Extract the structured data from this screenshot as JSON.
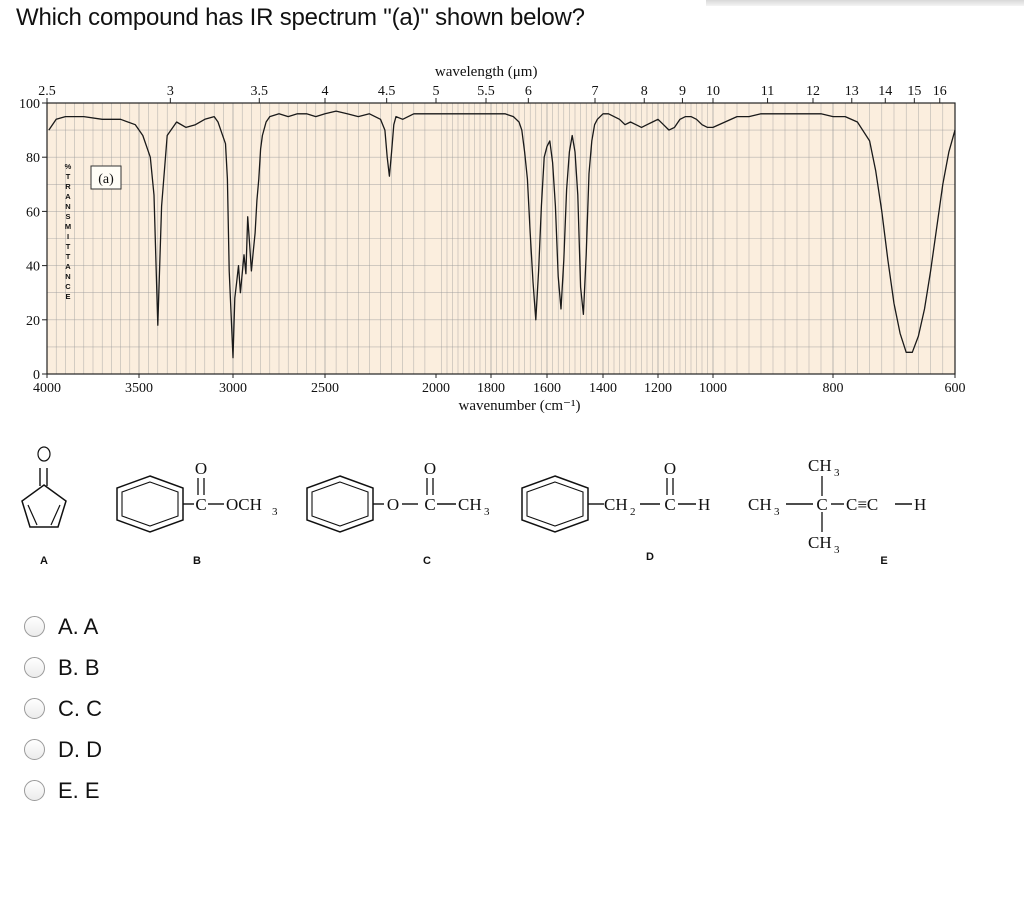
{
  "question": "Which compound has IR spectrum \"(a)\" shown below?",
  "chart_data": {
    "type": "line",
    "title": "",
    "panel_label": "(a)",
    "xlabel": "wavenumber (cm⁻¹)",
    "x2label": "wavelength (μm)",
    "ylabel_letters": [
      "%",
      "T",
      "R",
      "A",
      "N",
      "S",
      "M",
      "I",
      "T",
      "T",
      "A",
      "N",
      "C",
      "E"
    ],
    "xlim": [
      4000,
      600
    ],
    "ylim": [
      0,
      100
    ],
    "x_ticks": [
      {
        "value": 4000,
        "label": "4000"
      },
      {
        "value": 3500,
        "label": "3500"
      },
      {
        "value": 3000,
        "label": "3000"
      },
      {
        "value": 2500,
        "label": "2500"
      },
      {
        "value": 2000,
        "label": "2000"
      },
      {
        "value": 1800,
        "label": "1800"
      },
      {
        "value": 1600,
        "label": "1600"
      },
      {
        "value": 1400,
        "label": "1400"
      },
      {
        "value": 1200,
        "label": "1200"
      },
      {
        "value": 1000,
        "label": "1000"
      },
      {
        "value": 800,
        "label": "800"
      },
      {
        "value": 600,
        "label": "600"
      }
    ],
    "x2_ticks": [
      {
        "value": 2.5,
        "label": "2.5"
      },
      {
        "value": 3,
        "label": "3"
      },
      {
        "value": 3.5,
        "label": "3.5"
      },
      {
        "value": 4,
        "label": "4"
      },
      {
        "value": 4.5,
        "label": "4.5"
      },
      {
        "value": 5,
        "label": "5"
      },
      {
        "value": 5.5,
        "label": "5.5"
      },
      {
        "value": 6,
        "label": "6"
      },
      {
        "value": 7,
        "label": "7"
      },
      {
        "value": 8,
        "label": "8"
      },
      {
        "value": 9,
        "label": "9"
      },
      {
        "value": 10,
        "label": "10"
      },
      {
        "value": 11,
        "label": "11"
      },
      {
        "value": 12,
        "label": "12"
      },
      {
        "value": 13,
        "label": "13"
      },
      {
        "value": 14,
        "label": "14"
      },
      {
        "value": 15,
        "label": "15"
      },
      {
        "value": 16,
        "label": "16"
      }
    ],
    "y_ticks": [
      {
        "value": 0,
        "label": "0"
      },
      {
        "value": 20,
        "label": "20"
      },
      {
        "value": 40,
        "label": "40"
      },
      {
        "value": 60,
        "label": "60"
      },
      {
        "value": 80,
        "label": "80"
      },
      {
        "value": 100,
        "label": "100"
      }
    ],
    "grid": true,
    "series": [
      {
        "x": [
          3990,
          3950,
          3900,
          3800,
          3700,
          3600,
          3520,
          3480,
          3440,
          3420,
          3400,
          3380,
          3350,
          3300,
          3250,
          3200,
          3150,
          3100,
          3080,
          3060,
          3040,
          3030,
          3020,
          3010,
          3000,
          2990,
          2980,
          2970,
          2960,
          2940,
          2930,
          2920,
          2910,
          2900,
          2890,
          2880,
          2870,
          2860,
          2850,
          2840,
          2820,
          2800,
          2750,
          2700,
          2650,
          2600,
          2550,
          2500,
          2450,
          2400,
          2350,
          2300,
          2250,
          2230,
          2220,
          2210,
          2200,
          2190,
          2180,
          2150,
          2100,
          2050,
          2000,
          1950,
          1900,
          1850,
          1800,
          1750,
          1720,
          1710,
          1700,
          1690,
          1680,
          1670,
          1660,
          1650,
          1640,
          1630,
          1620,
          1610,
          1600,
          1590,
          1580,
          1570,
          1560,
          1550,
          1540,
          1530,
          1520,
          1510,
          1500,
          1490,
          1480,
          1470,
          1460,
          1450,
          1440,
          1430,
          1420,
          1400,
          1380,
          1360,
          1340,
          1320,
          1300,
          1280,
          1260,
          1240,
          1220,
          1200,
          1180,
          1160,
          1140,
          1120,
          1100,
          1080,
          1060,
          1040,
          1020,
          1000,
          980,
          960,
          940,
          920,
          900,
          880,
          860,
          840,
          820,
          800,
          780,
          760,
          740,
          730,
          720,
          710,
          700,
          690,
          680,
          670,
          660,
          650,
          640,
          630,
          620,
          610,
          600
        ],
        "y": [
          90,
          94,
          95,
          95,
          94,
          94,
          92,
          88,
          80,
          66,
          18,
          62,
          88,
          93,
          91,
          92,
          94,
          95,
          93,
          89,
          85,
          72,
          38,
          22,
          6,
          28,
          34,
          40,
          30,
          44,
          37,
          58,
          48,
          38,
          45,
          52,
          64,
          72,
          83,
          88,
          93,
          95,
          96,
          95,
          96,
          96,
          95,
          96,
          97,
          96,
          95,
          96,
          94,
          90,
          80,
          73,
          82,
          92,
          95,
          94,
          96,
          96,
          96,
          96,
          96,
          96,
          96,
          96,
          95,
          94,
          93,
          90,
          82,
          72,
          52,
          34,
          20,
          38,
          62,
          80,
          84,
          86,
          78,
          62,
          36,
          24,
          42,
          68,
          82,
          88,
          82,
          66,
          32,
          22,
          44,
          74,
          86,
          92,
          94,
          96,
          96,
          95,
          94,
          92,
          93,
          92,
          91,
          92,
          93,
          94,
          92,
          90,
          91,
          94,
          95,
          95,
          94,
          92,
          91,
          91,
          93,
          95,
          95,
          96,
          96,
          96,
          96,
          96,
          96,
          95,
          95,
          93,
          86,
          75,
          60,
          42,
          26,
          15,
          8,
          8,
          14,
          24,
          38,
          54,
          70,
          82,
          90
        ]
      }
    ]
  },
  "structures": [
    {
      "letter": "A"
    },
    {
      "letter": "B",
      "o": "O",
      "c": "C",
      "och3": "OCH",
      "sub3": "3"
    },
    {
      "letter": "C",
      "o_top": "O",
      "o_link": "O",
      "c": "C",
      "ch3": "CH",
      "sub3": "3"
    },
    {
      "letter": "D",
      "ch2": "CH",
      "sub2": "2",
      "o": "O",
      "c": "C",
      "h": "H"
    },
    {
      "letter": "E",
      "ch3_top": "CH",
      "ch3_left": "CH",
      "ch3_bottom": "CH",
      "sub3": "3",
      "c": "C",
      "triple": "C≡C",
      "h": "H"
    }
  ],
  "choices": [
    {
      "label": "A. A"
    },
    {
      "label": "B. B"
    },
    {
      "label": "C. C"
    },
    {
      "label": "D. D"
    },
    {
      "label": "E. E"
    }
  ]
}
